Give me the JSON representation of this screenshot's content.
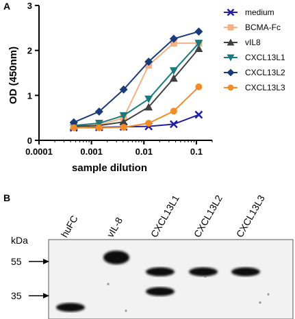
{
  "panel_a": {
    "label": "A",
    "chart_data": {
      "type": "line",
      "xscale": "log",
      "xlim": [
        0.0001,
        0.2
      ],
      "ylim": [
        0,
        3
      ],
      "xlabel": "sample dilution",
      "ylabel": "OD (450nm)",
      "xticks": [
        0.0001,
        0.001,
        0.01,
        0.1
      ],
      "xtick_labels": [
        "0.0001",
        "0.001",
        "0.01",
        "0.1"
      ],
      "yticks": [
        0,
        1,
        2,
        3
      ],
      "ytick_labels": [
        "0",
        "1",
        "2",
        "3"
      ],
      "legend_position": "right",
      "x": [
        0.00046,
        0.0014,
        0.0041,
        0.0123,
        0.037,
        0.111
      ],
      "series": [
        {
          "name": "medium",
          "color": "#1f1fa0",
          "marker": "x",
          "values": [
            0.28,
            0.29,
            0.3,
            0.31,
            0.36,
            0.57
          ]
        },
        {
          "name": "BCMA-Fc",
          "color": "#f4b183",
          "marker": "square",
          "values": [
            0.31,
            0.34,
            0.5,
            1.67,
            2.16,
            2.16
          ]
        },
        {
          "name": "vIL8",
          "color": "#404040",
          "marker": "triangle-up",
          "values": [
            0.31,
            0.33,
            0.41,
            0.74,
            1.38,
            2.04
          ]
        },
        {
          "name": "CXCL13L1",
          "color": "#1a7a7a",
          "marker": "triangle-down",
          "values": [
            0.33,
            0.38,
            0.55,
            0.92,
            1.55,
            2.16
          ]
        },
        {
          "name": "CXCL13L2",
          "color": "#1a3a7a",
          "marker": "diamond",
          "values": [
            0.4,
            0.64,
            1.13,
            1.75,
            2.26,
            2.42
          ]
        },
        {
          "name": "CXCL13L3",
          "color": "#f28c28",
          "marker": "circle",
          "values": [
            0.28,
            0.28,
            0.29,
            0.38,
            0.65,
            1.19
          ]
        }
      ]
    }
  },
  "panel_b": {
    "label": "B",
    "kda_label": "kDa",
    "markers": [
      {
        "label": "55",
        "kda": 55
      },
      {
        "label": "35",
        "kda": 35
      }
    ],
    "lanes": [
      {
        "label": "huFC",
        "bands_kda": [
          30
        ]
      },
      {
        "label": "vIL-8",
        "bands_kda": [
          58
        ]
      },
      {
        "label": "CXCL13L1",
        "bands_kda": [
          48,
          37
        ]
      },
      {
        "label": "CXCL13L2",
        "bands_kda": [
          48
        ]
      },
      {
        "label": "CXCL13L3",
        "bands_kda": [
          48
        ]
      }
    ]
  }
}
